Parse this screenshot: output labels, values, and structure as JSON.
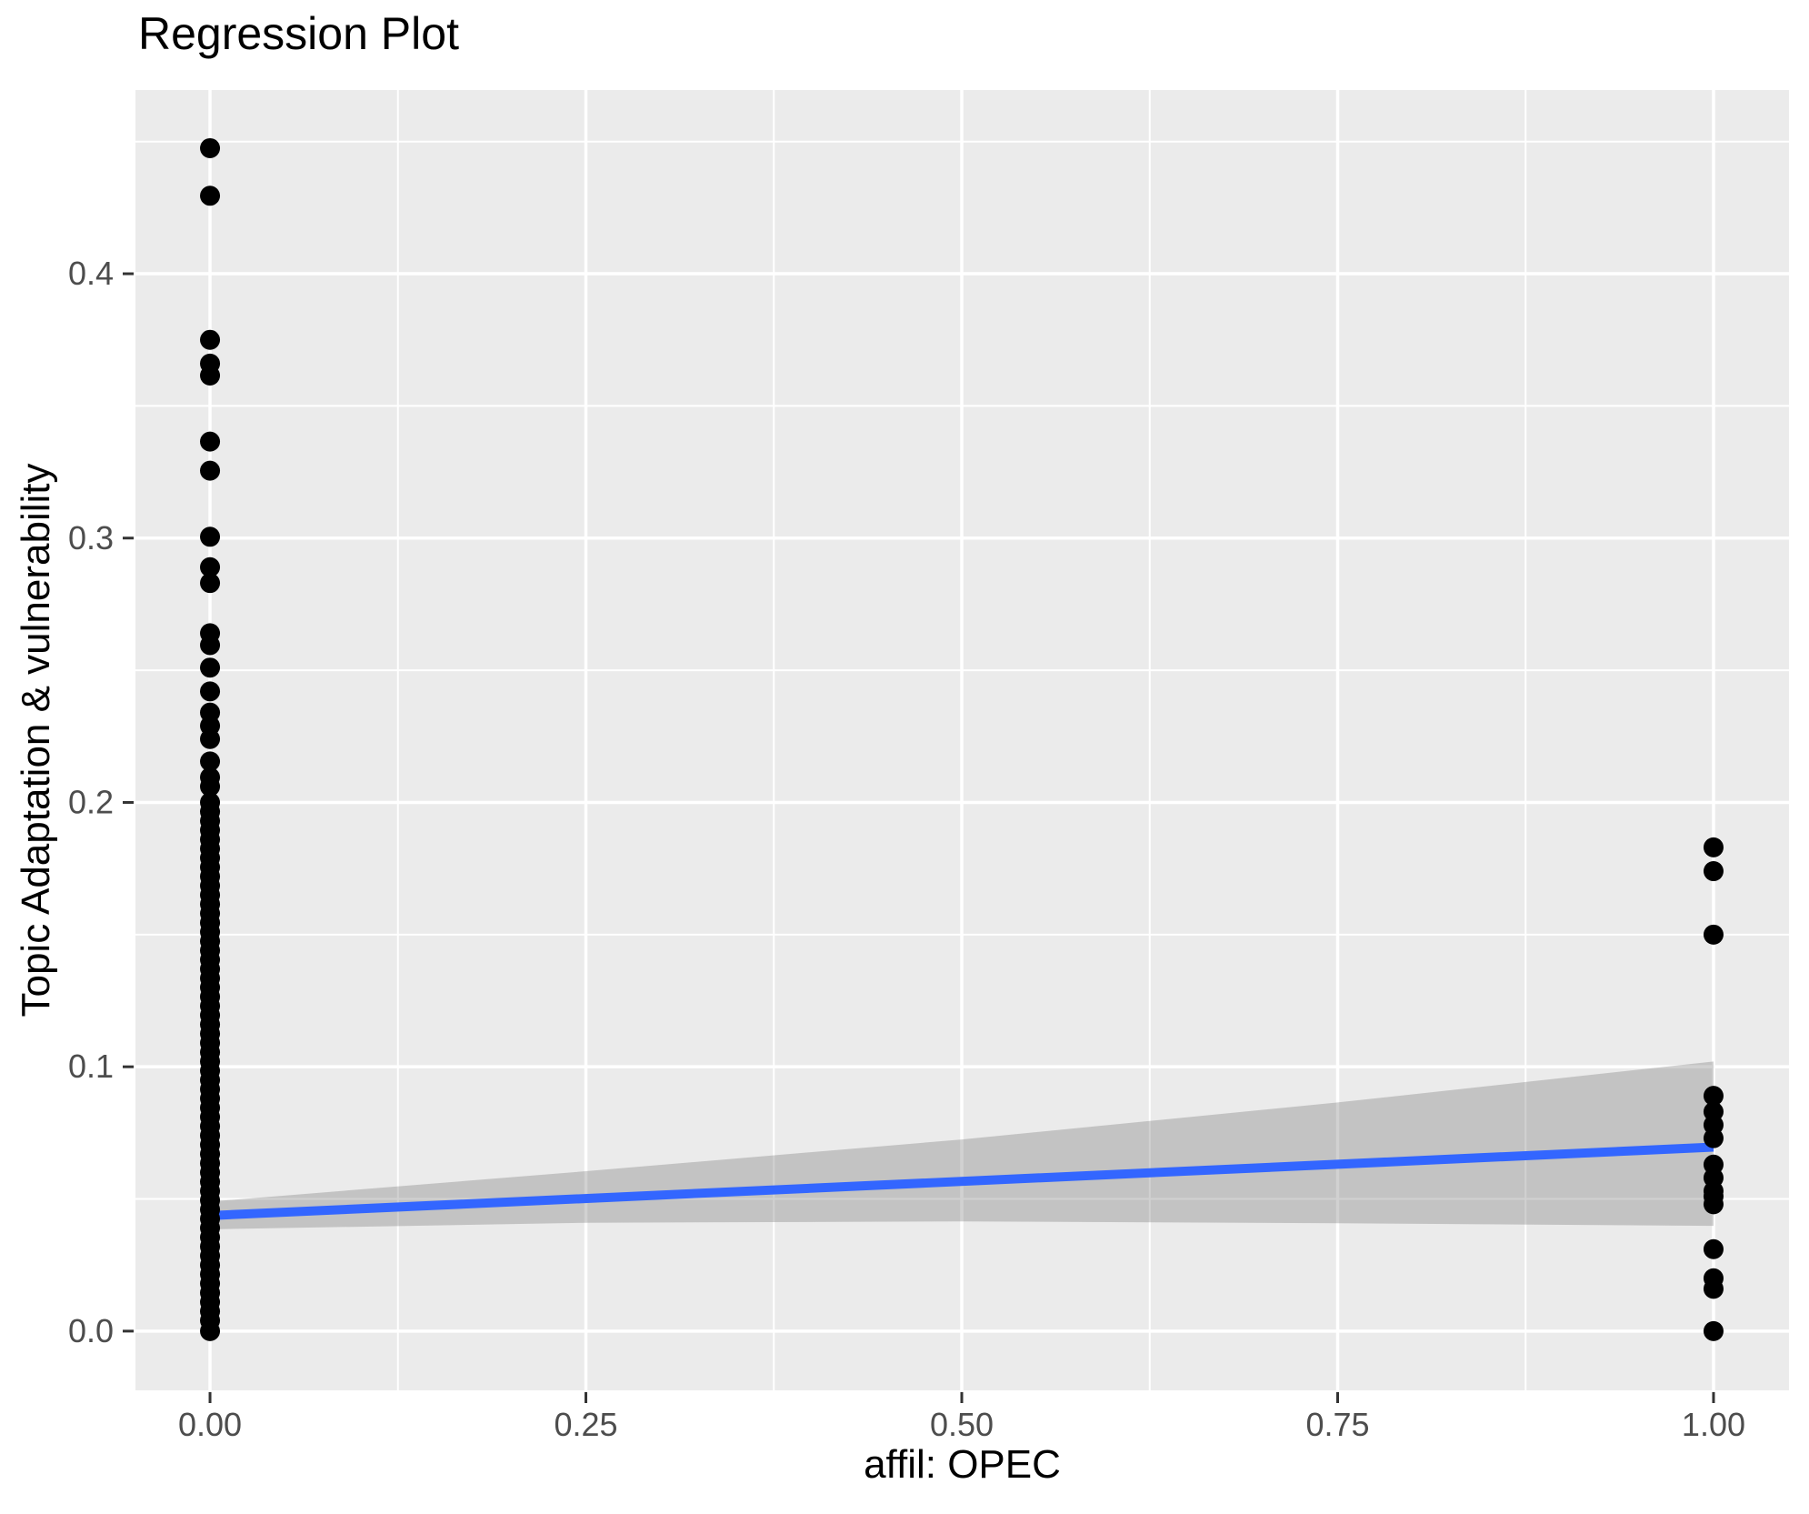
{
  "title": "Regression Plot",
  "chart_data": {
    "type": "scatter",
    "title": "Regression Plot",
    "xlabel": "affil: OPEC",
    "ylabel": "Topic Adaptation & vulnerability",
    "xlim": [
      -0.0496,
      1.0502
    ],
    "ylim": [
      -0.0224,
      0.4695
    ],
    "grid": true,
    "legend_position": "none",
    "x_ticks": {
      "values": [
        0,
        0.25,
        0.5,
        0.75,
        1.0
      ],
      "labels": [
        "0.00",
        "0.25",
        "0.50",
        "0.75",
        "1.00"
      ],
      "minor": [
        0.125,
        0.375,
        0.625,
        0.875
      ]
    },
    "y_ticks": {
      "values": [
        0,
        0.1,
        0.2,
        0.3,
        0.4
      ],
      "labels": [
        "0.0",
        "0.1",
        "0.2",
        "0.3",
        "0.4"
      ],
      "minor": [
        0.05,
        0.15,
        0.25,
        0.35,
        0.45
      ]
    },
    "series": [
      {
        "name": "observations at affil=0",
        "x": 0,
        "y": [
          0.4475,
          0.4295,
          0.375,
          0.366,
          0.3615,
          0.3365,
          0.3255,
          0.3005,
          0.289,
          0.283,
          0.264,
          0.2595,
          0.251,
          0.242,
          0.234,
          0.229,
          0.224,
          0.2155,
          0.2095,
          0.206,
          0.2,
          0.1965,
          0.193,
          0.1895,
          0.186,
          0.1825,
          0.179,
          0.1755,
          0.172,
          0.1685,
          0.165,
          0.1615,
          0.158,
          0.1545,
          0.151,
          0.1475,
          0.144,
          0.1405,
          0.137,
          0.1335,
          0.13,
          0.1265,
          0.123,
          0.1195,
          0.116,
          0.1125,
          0.109,
          0.1055,
          0.102,
          0.0985,
          0.095,
          0.0915,
          0.088,
          0.0845,
          0.081,
          0.0775,
          0.074,
          0.0705,
          0.067,
          0.0635,
          0.06,
          0.0565,
          0.053,
          0.0495,
          0.046,
          0.0425,
          0.039,
          0.0355,
          0.032,
          0.0285,
          0.025,
          0.0215,
          0.018,
          0.0145,
          0.011,
          0.0075,
          0.004,
          0.0
        ]
      },
      {
        "name": "observations at affil=1",
        "x": 1,
        "y": [
          0.183,
          0.174,
          0.15,
          0.089,
          0.083,
          0.078,
          0.073,
          0.063,
          0.058,
          0.053,
          0.051,
          0.048,
          0.031,
          0.02,
          0.016,
          0.0
        ]
      }
    ],
    "regression_line": {
      "x": [
        0,
        1
      ],
      "y": [
        0.0437,
        0.0696
      ],
      "color": "#3366FF",
      "width": 10
    },
    "ci_band": {
      "x": [
        0,
        0.25,
        0.5,
        0.75,
        1.0
      ],
      "upper": [
        0.049,
        0.0605,
        0.0725,
        0.0865,
        0.102
      ],
      "lower": [
        0.0385,
        0.041,
        0.0415,
        0.0408,
        0.0398
      ],
      "color": "#666666",
      "opacity": 0.3
    },
    "point_color": "#000000",
    "point_radius": 11,
    "panel_bg": "#EBEBEB",
    "grid_color": "#FFFFFF",
    "tick_color": "#333333",
    "tick_label_color": "#4D4D4D"
  }
}
